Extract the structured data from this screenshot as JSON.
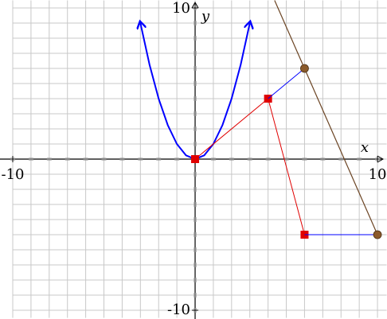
{
  "chart_data": {
    "type": "line",
    "x_label": "x",
    "y_label": "y",
    "xlim": [
      -10,
      10.5
    ],
    "ylim": [
      -10.5,
      10.5
    ],
    "xticks": [
      -10,
      10
    ],
    "yticks": [
      -10,
      10
    ],
    "grid": true,
    "series": [
      {
        "color": "#0000ff",
        "width": 2,
        "arrows": true,
        "x": [
          -3,
          -2.5,
          -2,
          -1.5,
          -1,
          -0.5,
          0,
          0.5,
          1,
          1.5,
          2,
          2.5,
          3
        ],
        "values": [
          9,
          6.25,
          4,
          2.25,
          1,
          0.25,
          0,
          0.25,
          1,
          2.25,
          4,
          6.25,
          9
        ]
      },
      {
        "color": "#6b4423",
        "width": 1.2,
        "x": [
          4.36,
          10
        ],
        "values": [
          10.5,
          -5
        ]
      },
      {
        "color": "#e00000",
        "width": 1,
        "marker": "square",
        "x": [
          0,
          4,
          6
        ],
        "values": [
          0,
          4,
          -5
        ]
      },
      {
        "color": "#0000ff",
        "width": 1,
        "x": [
          4,
          6,
          6,
          6,
          10
        ],
        "values": [
          4,
          6,
          null,
          -5,
          -5
        ]
      },
      {
        "color": "#8b5a2b",
        "line": false,
        "marker": "circle",
        "x": [
          6,
          10
        ],
        "values": [
          6,
          -5
        ]
      }
    ]
  }
}
